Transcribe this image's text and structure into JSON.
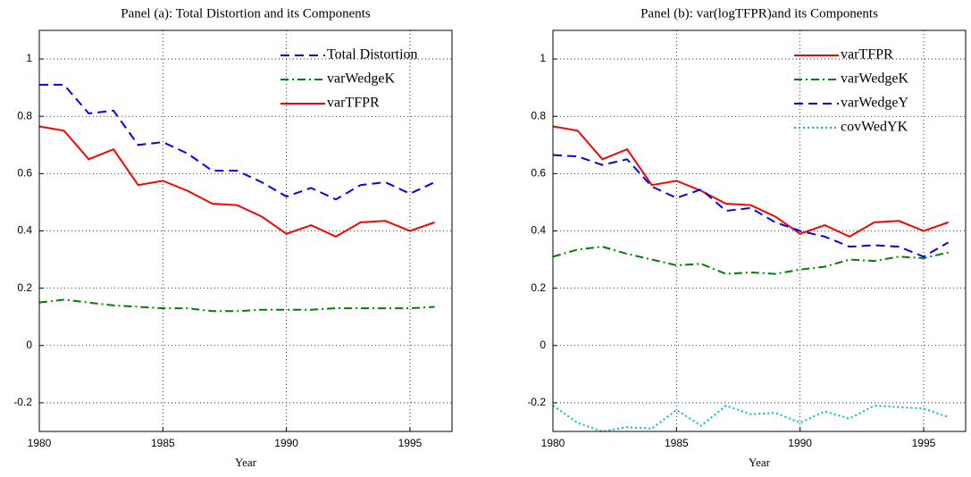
{
  "chart_data": [
    {
      "type": "line",
      "title": "Panel (a): Total Distortion and its Components",
      "x_label": "Year",
      "x": [
        1980,
        1981,
        1982,
        1983,
        1984,
        1985,
        1986,
        1987,
        1988,
        1989,
        1990,
        1991,
        1992,
        1993,
        1994,
        1995,
        1996
      ],
      "xlim": [
        1980,
        1996.7
      ],
      "xticks": [
        1980,
        1985,
        1990,
        1995
      ],
      "ylim": [
        -0.3,
        1.1
      ],
      "yticks": [
        -0.2,
        0,
        0.2,
        0.4,
        0.6,
        0.8,
        1
      ],
      "grid": true,
      "legend": "top-right",
      "series": [
        {
          "name": "Total Distortion",
          "color": "#0000ff",
          "linestyle": "dashed",
          "values": [
            0.91,
            0.91,
            0.81,
            0.82,
            0.7,
            0.71,
            0.67,
            0.61,
            0.61,
            0.57,
            0.52,
            0.55,
            0.51,
            0.56,
            0.57,
            0.53,
            0.57
          ]
        },
        {
          "name": "varWedgeK",
          "color": "#008000",
          "linestyle": "dashdot",
          "values": [
            0.15,
            0.16,
            0.15,
            0.14,
            0.135,
            0.13,
            0.13,
            0.12,
            0.12,
            0.125,
            0.125,
            0.125,
            0.13,
            0.13,
            0.13,
            0.13,
            0.135
          ]
        },
        {
          "name": "varTFPR",
          "color": "#ff0000",
          "linestyle": "solid",
          "values": [
            0.765,
            0.75,
            0.65,
            0.685,
            0.56,
            0.575,
            0.54,
            0.495,
            0.49,
            0.45,
            0.39,
            0.42,
            0.38,
            0.43,
            0.435,
            0.4,
            0.43
          ]
        }
      ]
    },
    {
      "type": "line",
      "title": "Panel (b): var(logTFPR)and its Components",
      "x_label": "Year",
      "x": [
        1980,
        1981,
        1982,
        1983,
        1984,
        1985,
        1986,
        1987,
        1988,
        1989,
        1990,
        1991,
        1992,
        1993,
        1994,
        1995,
        1996
      ],
      "xlim": [
        1980,
        1996.7
      ],
      "xticks": [
        1980,
        1985,
        1990,
        1995
      ],
      "ylim": [
        -0.3,
        1.1
      ],
      "yticks": [
        -0.2,
        0,
        0.2,
        0.4,
        0.6,
        0.8,
        1
      ],
      "grid": true,
      "legend": "top-right",
      "series": [
        {
          "name": "varTFPR",
          "color": "#ff0000",
          "linestyle": "solid",
          "values": [
            0.765,
            0.75,
            0.65,
            0.685,
            0.56,
            0.575,
            0.54,
            0.495,
            0.49,
            0.45,
            0.39,
            0.42,
            0.38,
            0.43,
            0.435,
            0.4,
            0.43
          ]
        },
        {
          "name": "varWedgeK",
          "color": "#008000",
          "linestyle": "dashdot",
          "values": [
            0.31,
            0.335,
            0.345,
            0.32,
            0.3,
            0.28,
            0.285,
            0.25,
            0.255,
            0.25,
            0.265,
            0.275,
            0.3,
            0.295,
            0.31,
            0.305,
            0.325
          ]
        },
        {
          "name": "varWedgeY",
          "color": "#0000ff",
          "linestyle": "dashed",
          "values": [
            0.665,
            0.66,
            0.63,
            0.65,
            0.555,
            0.515,
            0.545,
            0.47,
            0.48,
            0.43,
            0.4,
            0.38,
            0.345,
            0.35,
            0.345,
            0.31,
            0.36
          ]
        },
        {
          "name": "covWedYK",
          "color": "#00bfbf",
          "linestyle": "dotted",
          "values": [
            -0.21,
            -0.27,
            -0.3,
            -0.285,
            -0.29,
            -0.225,
            -0.28,
            -0.21,
            -0.24,
            -0.235,
            -0.27,
            -0.23,
            -0.255,
            -0.21,
            -0.215,
            -0.22,
            -0.25
          ]
        }
      ]
    }
  ]
}
